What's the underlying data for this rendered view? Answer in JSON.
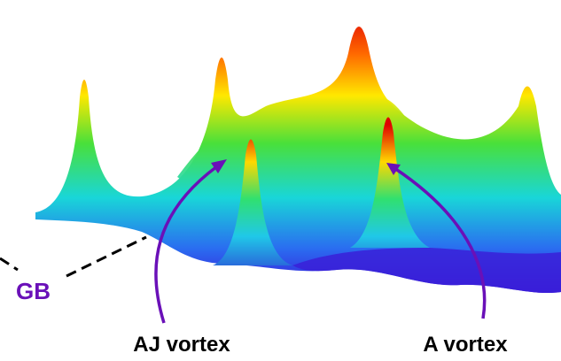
{
  "labels": {
    "gb": "GB",
    "aj_vortex": "AJ vortex",
    "a_vortex": "A vortex"
  }
}
